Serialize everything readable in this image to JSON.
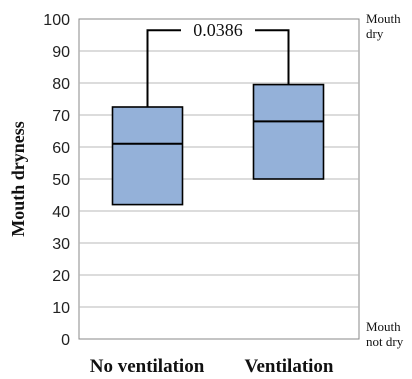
{
  "chart_data": {
    "type": "box",
    "ylabel": "Mouth dryness",
    "xlabel": "",
    "ylim": [
      0,
      100
    ],
    "yticks": [
      0,
      10,
      20,
      30,
      40,
      50,
      60,
      70,
      80,
      90,
      100
    ],
    "grid": true,
    "categories": [
      "No ventilation",
      "Ventilation"
    ],
    "boxes": [
      {
        "category": "No ventilation",
        "q1": 42,
        "median": 61,
        "q3": 72.5
      },
      {
        "category": "Ventilation",
        "q1": 50,
        "median": 68,
        "q3": 79.5
      }
    ],
    "box_color": "#94b1d9",
    "significance": {
      "label": "0.0386",
      "y_value": 96.5
    },
    "right_labels": {
      "top": [
        "Mouth",
        "dry"
      ],
      "bottom": [
        "Mouth",
        "not dry"
      ]
    }
  }
}
